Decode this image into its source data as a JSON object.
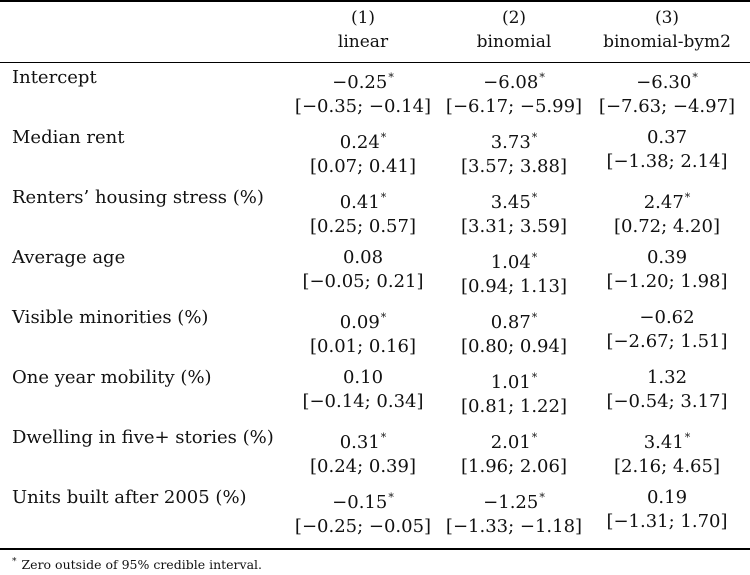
{
  "columns": [
    {
      "num": "(1)",
      "name": "linear"
    },
    {
      "num": "(2)",
      "name": "binomial"
    },
    {
      "num": "(3)",
      "name": "binomial-bym2"
    }
  ],
  "rows": [
    {
      "label": "Intercept",
      "cells": [
        {
          "est": "−0.25",
          "star": "*",
          "ci": "[−0.35; −0.14]"
        },
        {
          "est": "−6.08",
          "star": "*",
          "ci": "[−6.17; −5.99]"
        },
        {
          "est": "−6.30",
          "star": "*",
          "ci": "[−7.63; −4.97]"
        }
      ]
    },
    {
      "label": "Median rent",
      "cells": [
        {
          "est": "0.24",
          "star": "*",
          "ci": "[0.07; 0.41]"
        },
        {
          "est": "3.73",
          "star": "*",
          "ci": "[3.57; 3.88]"
        },
        {
          "est": "0.37",
          "star": "",
          "ci": "[−1.38; 2.14]"
        }
      ]
    },
    {
      "label": "Renters’ housing stress (%)",
      "cells": [
        {
          "est": "0.41",
          "star": "*",
          "ci": "[0.25; 0.57]"
        },
        {
          "est": "3.45",
          "star": "*",
          "ci": "[3.31; 3.59]"
        },
        {
          "est": "2.47",
          "star": "*",
          "ci": "[0.72; 4.20]"
        }
      ]
    },
    {
      "label": "Average age",
      "cells": [
        {
          "est": "0.08",
          "star": "",
          "ci": "[−0.05; 0.21]"
        },
        {
          "est": "1.04",
          "star": "*",
          "ci": "[0.94; 1.13]"
        },
        {
          "est": "0.39",
          "star": "",
          "ci": "[−1.20; 1.98]"
        }
      ]
    },
    {
      "label": "Visible minorities (%)",
      "cells": [
        {
          "est": "0.09",
          "star": "*",
          "ci": "[0.01; 0.16]"
        },
        {
          "est": "0.87",
          "star": "*",
          "ci": "[0.80; 0.94]"
        },
        {
          "est": "−0.62",
          "star": "",
          "ci": "[−2.67; 1.51]"
        }
      ]
    },
    {
      "label": "One year mobility (%)",
      "cells": [
        {
          "est": "0.10",
          "star": "",
          "ci": "[−0.14; 0.34]"
        },
        {
          "est": "1.01",
          "star": "*",
          "ci": "[0.81; 1.22]"
        },
        {
          "est": "1.32",
          "star": "",
          "ci": "[−0.54; 3.17]"
        }
      ]
    },
    {
      "label": "Dwelling in five+ stories (%)",
      "cells": [
        {
          "est": "0.31",
          "star": "*",
          "ci": "[0.24; 0.39]"
        },
        {
          "est": "2.01",
          "star": "*",
          "ci": "[1.96; 2.06]"
        },
        {
          "est": "3.41",
          "star": "*",
          "ci": "[2.16; 4.65]"
        }
      ]
    },
    {
      "label": "Units built after 2005 (%)",
      "cells": [
        {
          "est": "−0.15",
          "star": "*",
          "ci": "[−0.25; −0.05]"
        },
        {
          "est": "−1.25",
          "star": "*",
          "ci": "[−1.33; −1.18]"
        },
        {
          "est": "0.19",
          "star": "",
          "ci": "[−1.31; 1.70]"
        }
      ]
    }
  ],
  "footnote": {
    "mark": "*",
    "text": "Zero outside of 95% credible interval."
  }
}
